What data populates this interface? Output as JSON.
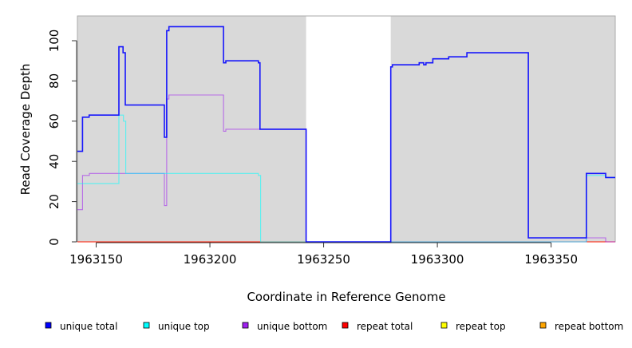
{
  "chart_data": {
    "type": "line",
    "step": "post",
    "title": "",
    "xlabel": "Coordinate in Reference Genome",
    "ylabel": "Read Coverage Depth",
    "xlim": [
      1963141.75,
      1963378.2
    ],
    "ylim": [
      0,
      112.3
    ],
    "xticks": [
      1963150,
      1963200,
      1963250,
      1963300,
      1963350
    ],
    "yticks": [
      0,
      20,
      40,
      60,
      80,
      100
    ],
    "shaded_regions": [
      [
        1963141.75,
        1963242.3
      ],
      [
        1963279.5,
        1963378.2
      ]
    ],
    "shade_color": "#d9d9d9",
    "legend_position": "bottom",
    "series": [
      {
        "name": "repeat bottom",
        "color": "#ffa500",
        "points": [
          [
            1963141.75,
            0
          ],
          [
            1963378.2,
            0
          ]
        ]
      },
      {
        "name": "repeat top",
        "color": "#ffff00",
        "points": [
          [
            1963141.75,
            0
          ],
          [
            1963378.2,
            0
          ]
        ]
      },
      {
        "name": "repeat total",
        "color": "#ff0000",
        "points": [
          [
            1963141.75,
            0
          ],
          [
            1963378.2,
            0
          ]
        ]
      },
      {
        "name": "unique bottom",
        "color": "#a020f0",
        "points": [
          [
            1963141.75,
            16
          ],
          [
            1963144,
            33
          ],
          [
            1963147,
            34
          ],
          [
            1963180,
            18
          ],
          [
            1963181,
            71
          ],
          [
            1963182,
            73
          ],
          [
            1963206,
            55
          ],
          [
            1963207,
            56
          ],
          [
            1963242.3,
            0
          ],
          [
            1963365.5,
            2
          ],
          [
            1963374,
            0
          ],
          [
            1963378.2,
            0
          ]
        ]
      },
      {
        "name": "unique top",
        "color": "#00ffff",
        "points": [
          [
            1963141.75,
            29
          ],
          [
            1963160,
            63
          ],
          [
            1963162,
            60
          ],
          [
            1963163,
            34
          ],
          [
            1963221.3,
            33
          ],
          [
            1963222.3,
            0
          ],
          [
            1963365.5,
            33
          ],
          [
            1963374,
            32
          ],
          [
            1963378.2,
            32
          ]
        ]
      },
      {
        "name": "unique total",
        "color": "#0000ff",
        "points": [
          [
            1963141.75,
            45
          ],
          [
            1963144,
            62
          ],
          [
            1963146.9,
            63
          ],
          [
            1963160,
            97
          ],
          [
            1963161.8,
            94
          ],
          [
            1963162.8,
            68
          ],
          [
            1963180,
            52
          ],
          [
            1963181,
            105
          ],
          [
            1963182,
            107
          ],
          [
            1963206,
            89
          ],
          [
            1963207,
            90
          ],
          [
            1963221.3,
            89
          ],
          [
            1963222,
            56
          ],
          [
            1963242.3,
            0
          ],
          [
            1963279.5,
            87
          ],
          [
            1963280.2,
            88
          ],
          [
            1963292,
            89
          ],
          [
            1963294,
            88
          ],
          [
            1963295,
            89
          ],
          [
            1963298,
            91
          ],
          [
            1963305,
            92
          ],
          [
            1963313,
            94
          ],
          [
            1963340,
            2
          ],
          [
            1963365.5,
            34
          ],
          [
            1963374,
            32
          ],
          [
            1963378.2,
            32
          ]
        ]
      }
    ],
    "legend": [
      {
        "label": "unique total",
        "color": "#0000ff"
      },
      {
        "label": "unique top",
        "color": "#00ffff"
      },
      {
        "label": "unique bottom",
        "color": "#a020f0"
      },
      {
        "label": "repeat total",
        "color": "#ff0000"
      },
      {
        "label": "repeat top",
        "color": "#ffff00"
      },
      {
        "label": "repeat bottom",
        "color": "#ffa500"
      }
    ]
  }
}
